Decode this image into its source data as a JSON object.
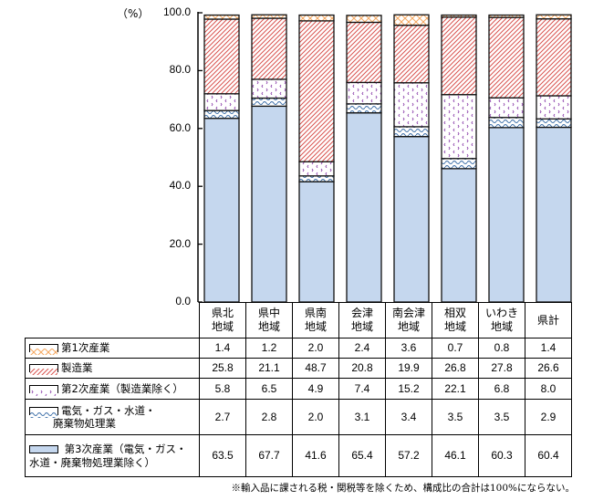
{
  "chart_data": {
    "type": "bar",
    "stacked": true,
    "unit_label": "（%）",
    "ylim": [
      0,
      100
    ],
    "yticks": [
      "0.0",
      "20.0",
      "40.0",
      "60.0",
      "80.0",
      "100.0"
    ],
    "categories": [
      {
        "line1": "県北",
        "line2": "地域"
      },
      {
        "line1": "県中",
        "line2": "地域"
      },
      {
        "line1": "県南",
        "line2": "地域"
      },
      {
        "line1": "会津",
        "line2": "地域"
      },
      {
        "line1": "南会津",
        "line2": "地域"
      },
      {
        "line1": "相双",
        "line2": "地域"
      },
      {
        "line1": "いわき",
        "line2": "地域"
      },
      {
        "line1": "県計",
        "line2": ""
      }
    ],
    "series_stack_order_bottom_to_top": [
      "tertiary",
      "utilities",
      "secondary_excl_mfg",
      "manufacturing",
      "primary"
    ],
    "series": [
      {
        "key": "primary",
        "name": "第1次産業",
        "name_line2": "",
        "pattern": "crosshatch",
        "color": "#f5a75f",
        "fill": "#ffffff",
        "values": [
          1.4,
          1.2,
          2.0,
          2.4,
          3.6,
          0.7,
          0.8,
          1.4
        ],
        "labels": [
          "1.4",
          "1.2",
          "2.0",
          "2.4",
          "3.6",
          "0.7",
          "0.8",
          "1.4"
        ]
      },
      {
        "key": "manufacturing",
        "name": "製造業",
        "name_line2": "",
        "pattern": "diagonal",
        "color": "#d9534f",
        "fill": "#ffffff",
        "values": [
          25.8,
          21.1,
          48.7,
          20.8,
          19.9,
          26.8,
          27.8,
          26.6
        ],
        "labels": [
          "25.8",
          "21.1",
          "48.7",
          "20.8",
          "19.9",
          "26.8",
          "27.8",
          "26.6"
        ]
      },
      {
        "key": "secondary_excl_mfg",
        "name": "第2次産業（製造業除く）",
        "name_line2": "",
        "pattern": "dots",
        "color": "#8e44ad",
        "fill": "#ffffff",
        "values": [
          5.8,
          6.5,
          4.9,
          7.4,
          15.2,
          22.1,
          6.8,
          8.0
        ],
        "labels": [
          "5.8",
          "6.5",
          "4.9",
          "7.4",
          "15.2",
          "22.1",
          "6.8",
          "8.0"
        ]
      },
      {
        "key": "utilities",
        "name": "電気・ガス・水道・",
        "name_line2": "廃棄物処理業",
        "pattern": "wave",
        "color": "#3c6ea8",
        "fill": "#ffffff",
        "values": [
          2.7,
          2.8,
          2.0,
          3.1,
          3.4,
          3.5,
          3.5,
          2.9
        ],
        "labels": [
          "2.7",
          "2.8",
          "2.0",
          "3.1",
          "3.4",
          "3.5",
          "3.5",
          "2.9"
        ]
      },
      {
        "key": "tertiary",
        "name": "第3次産業（電気・ガス・",
        "name_line2": "水道・廃棄物処理業除く）",
        "pattern": "solid",
        "color": "#c5d7ee",
        "fill": "#c5d7ee",
        "values": [
          63.5,
          67.7,
          41.6,
          65.4,
          57.2,
          46.1,
          60.3,
          60.4
        ],
        "labels": [
          "63.5",
          "67.7",
          "41.6",
          "65.4",
          "57.2",
          "46.1",
          "60.3",
          "60.4"
        ]
      }
    ],
    "title": "",
    "xlabel": "",
    "ylabel": "（%）",
    "grid": false,
    "legend_position": "table-left"
  },
  "footnote": "※輸入品に課される税・関税等を除くため、構成比の合計は100%にならない。"
}
